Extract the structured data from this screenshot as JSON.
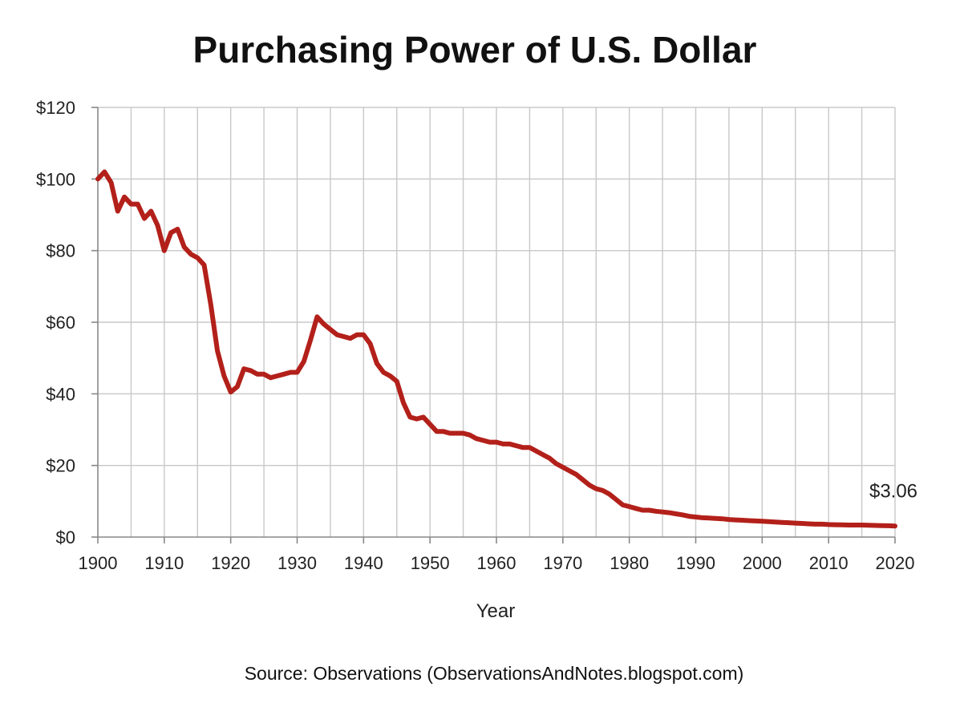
{
  "chart_data": {
    "type": "line",
    "title": "Purchasing Power of U.S. Dollar",
    "xlabel": "Year",
    "ylabel": "",
    "source": "Source: Observations (ObservationsAndNotes.blogspot.com)",
    "xlim": [
      1900,
      2020
    ],
    "ylim": [
      0,
      120
    ],
    "x_ticks": [
      "1900",
      "1910",
      "1920",
      "1930",
      "1940",
      "1950",
      "1960",
      "1970",
      "1980",
      "1990",
      "2000",
      "2010",
      "2020"
    ],
    "y_ticks": [
      "$0",
      "$20",
      "$40",
      "$60",
      "$80",
      "$100",
      "$120"
    ],
    "grid": true,
    "line_color": "#b3201a",
    "annotation": {
      "text": "$3.06",
      "x": 2020,
      "y": 3.06
    },
    "series": [
      {
        "x": [
          1900,
          1901,
          1902,
          1903,
          1904,
          1905,
          1906,
          1907,
          1908,
          1909,
          1910,
          1911,
          1912,
          1913,
          1914,
          1915,
          1916,
          1917,
          1918,
          1919,
          1920,
          1921,
          1922,
          1923,
          1924,
          1925,
          1926,
          1927,
          1928,
          1929,
          1930,
          1931,
          1932,
          1933,
          1934,
          1935,
          1936,
          1937,
          1938,
          1939,
          1940,
          1941,
          1942,
          1943,
          1944,
          1945,
          1946,
          1947,
          1948,
          1949,
          1950,
          1951,
          1952,
          1953,
          1954,
          1955,
          1956,
          1957,
          1958,
          1959,
          1960,
          1961,
          1962,
          1963,
          1964,
          1965,
          1966,
          1967,
          1968,
          1969,
          1970,
          1971,
          1972,
          1973,
          1974,
          1975,
          1976,
          1977,
          1978,
          1979,
          1980,
          1981,
          1982,
          1983,
          1984,
          1985,
          1986,
          1987,
          1988,
          1989,
          1990,
          1991,
          1992,
          1993,
          1994,
          1995,
          1996,
          1997,
          1998,
          1999,
          2000,
          2001,
          2002,
          2003,
          2004,
          2005,
          2006,
          2007,
          2008,
          2009,
          2010,
          2011,
          2012,
          2013,
          2014,
          2015,
          2016,
          2017,
          2018,
          2019,
          2020
        ],
        "values": [
          100,
          102,
          99,
          91,
          95,
          93,
          93,
          89,
          91,
          87,
          80,
          85,
          86,
          81,
          79,
          78,
          76,
          65,
          52,
          45,
          40.5,
          42,
          47,
          46.5,
          45.5,
          45.5,
          44.5,
          45,
          45.5,
          46,
          46,
          49,
          55,
          61.5,
          59.5,
          58,
          56.5,
          56,
          55.5,
          56.5,
          56.5,
          54,
          48.5,
          46,
          45,
          43.5,
          37.5,
          33.5,
          33,
          33.5,
          31.5,
          29.5,
          29.5,
          29,
          29,
          29,
          28.5,
          27.5,
          27,
          26.5,
          26.5,
          26,
          26,
          25.5,
          25,
          25,
          24,
          23,
          22,
          20.5,
          19.5,
          18.5,
          17.5,
          16,
          14.5,
          13.5,
          13,
          12,
          10.5,
          9,
          8.5,
          8,
          7.5,
          7.5,
          7.2,
          7,
          6.8,
          6.5,
          6.2,
          5.8,
          5.6,
          5.4,
          5.3,
          5.2,
          5.1,
          4.9,
          4.8,
          4.7,
          4.6,
          4.5,
          4.4,
          4.3,
          4.2,
          4.1,
          4,
          3.9,
          3.8,
          3.7,
          3.6,
          3.6,
          3.5,
          3.45,
          3.4,
          3.35,
          3.35,
          3.35,
          3.3,
          3.25,
          3.2,
          3.15,
          3.06
        ]
      }
    ]
  }
}
